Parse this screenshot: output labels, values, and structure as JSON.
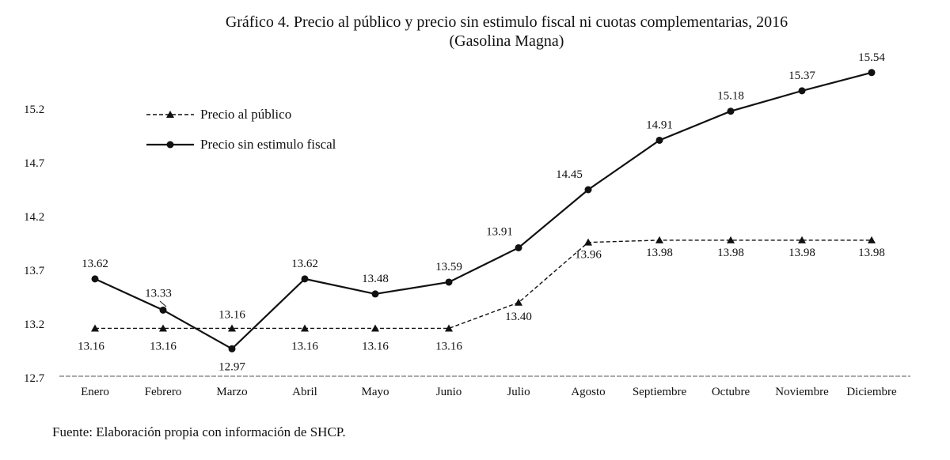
{
  "chart_data": {
    "type": "line",
    "title": "Gráfico 4. Precio al público y precio sin estimulo fiscal ni cuotas complementarias, 2016",
    "subtitle": "(Gasolina Magna)",
    "xlabel": "",
    "ylabel": "",
    "categories": [
      "Enero",
      "Febrero",
      "Marzo",
      "Abril",
      "Mayo",
      "Junio",
      "Julio",
      "Agosto",
      "Septiembre",
      "Octubre",
      "Noviembre",
      "Diciembre"
    ],
    "yticks": [
      "15.2",
      "14.7",
      "14.2",
      "13.7",
      "13.2",
      "12.7"
    ],
    "ylim": [
      12.7,
      15.6
    ],
    "grid": false,
    "legend_position": "top-left",
    "series": [
      {
        "name": "Precio al público",
        "style": "dashed-triangle",
        "values": [
          13.16,
          13.16,
          13.16,
          13.16,
          13.16,
          13.16,
          13.4,
          13.96,
          13.98,
          13.98,
          13.98,
          13.98
        ],
        "labels": [
          "13.16",
          "13.16",
          "13.16",
          "13.16",
          "13.16",
          "13.16",
          "13.40",
          "13.96",
          "13.98",
          "13.98",
          "13.98",
          "13.98"
        ]
      },
      {
        "name": "Precio sin estimulo fiscal",
        "style": "solid-circle",
        "values": [
          13.62,
          13.33,
          12.97,
          13.62,
          13.48,
          13.59,
          13.91,
          14.45,
          14.91,
          15.18,
          15.37,
          15.54
        ],
        "labels": [
          "13.62",
          "13.33",
          "12.97",
          "13.62",
          "13.48",
          "13.59",
          "13.91",
          "14.45",
          "14.91",
          "15.18",
          "15.37",
          "15.54"
        ]
      }
    ],
    "line_color": "#111111"
  },
  "source": "Fuente: Elaboración propia con información de SHCP."
}
